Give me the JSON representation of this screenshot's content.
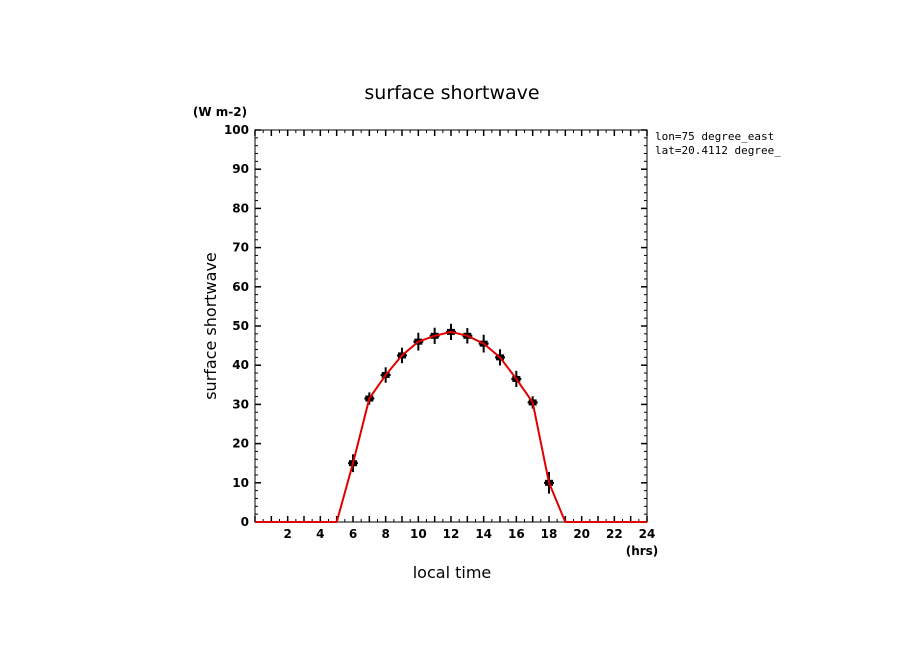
{
  "chart_data": {
    "type": "line",
    "title": "surface shortwave",
    "ylabel": "surface shortwave",
    "xlabel": "local time",
    "y_unit": "(W m-2)",
    "x_unit": "(hrs)",
    "annotations": [
      "lon=75 degree_east",
      "lat=20.4112 degree_"
    ],
    "xlim": [
      0,
      24
    ],
    "ylim": [
      0,
      100
    ],
    "x_ticks": [
      2,
      4,
      6,
      8,
      10,
      12,
      14,
      16,
      18,
      20,
      22,
      24
    ],
    "y_ticks": [
      0,
      10,
      20,
      30,
      40,
      50,
      60,
      70,
      80,
      90,
      100
    ],
    "grid": false,
    "colors": {
      "line": "#e00000",
      "markers": "#000000",
      "axes": "#000000"
    },
    "series": [
      {
        "style": "line",
        "x": [
          0,
          1,
          2,
          3,
          4,
          5,
          6,
          7,
          8,
          9,
          10,
          11,
          12,
          13,
          14,
          15,
          16,
          17,
          18,
          19,
          20,
          21,
          22,
          23,
          24
        ],
        "y": [
          0,
          0,
          0,
          0,
          0,
          0,
          15,
          31.5,
          37.5,
          42.5,
          46,
          47.5,
          48.5,
          47.5,
          45.5,
          42,
          36.5,
          30.5,
          10,
          0,
          0,
          0,
          0,
          0,
          0
        ]
      },
      {
        "style": "markers-with-errorbars",
        "x": [
          6,
          7,
          8,
          9,
          10,
          11,
          12,
          13,
          14,
          15,
          16,
          17,
          18
        ],
        "y": [
          15,
          31.5,
          37.5,
          42.5,
          46,
          47.5,
          48.5,
          47.5,
          45.5,
          42,
          36.5,
          30.5,
          10
        ],
        "err": [
          1.5,
          0.8,
          1.2,
          1.2,
          1.5,
          1.3,
          1.3,
          1.2,
          1.5,
          1.3,
          1.3,
          0.8,
          2
        ]
      }
    ]
  }
}
